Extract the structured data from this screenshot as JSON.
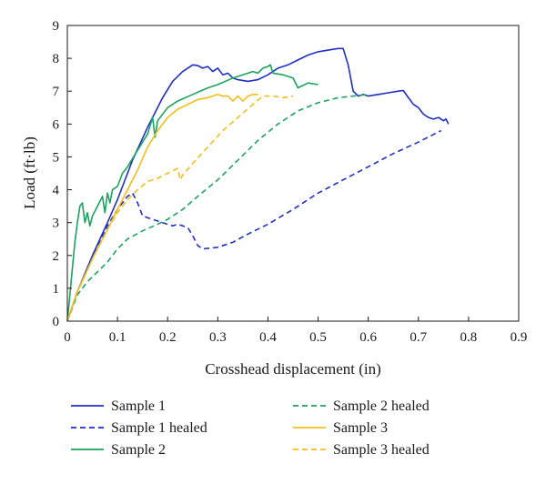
{
  "chart_data": {
    "type": "line",
    "title": "",
    "xlabel": "Crosshead displacement (in)",
    "ylabel": "Load (ft·lb)",
    "xlim": [
      0,
      0.9
    ],
    "ylim": [
      0,
      9
    ],
    "xticks": [
      0,
      0.1,
      0.2,
      0.3,
      0.4,
      0.5,
      0.6,
      0.7,
      0.8,
      0.9
    ],
    "yticks": [
      0,
      1,
      2,
      3,
      4,
      5,
      6,
      7,
      8,
      9
    ],
    "xtick_labels": [
      "0",
      "0.1",
      "0.2",
      "0.3",
      "0.4",
      "0.5",
      "0.6",
      "0.7",
      "0.8",
      "0.9"
    ],
    "ytick_labels": [
      "0",
      "1",
      "2",
      "3",
      "4",
      "5",
      "6",
      "7",
      "8",
      "9"
    ],
    "grid": false,
    "legend_position": "bottom, two columns",
    "series": [
      {
        "name": "Sample 1",
        "color": "#1f2fc4",
        "dash": "solid",
        "x": [
          0,
          0.02,
          0.05,
          0.08,
          0.1,
          0.13,
          0.16,
          0.19,
          0.21,
          0.23,
          0.25,
          0.26,
          0.27,
          0.28,
          0.29,
          0.3,
          0.31,
          0.32,
          0.33,
          0.34,
          0.36,
          0.38,
          0.4,
          0.42,
          0.44,
          0.46,
          0.48,
          0.5,
          0.52,
          0.54,
          0.55,
          0.56,
          0.57,
          0.58,
          0.59,
          0.6,
          0.62,
          0.64,
          0.66,
          0.67,
          0.68,
          0.69,
          0.7,
          0.71,
          0.72,
          0.73,
          0.74,
          0.75,
          0.755,
          0.76
        ],
        "y": [
          0,
          0.9,
          2.0,
          3.0,
          3.7,
          4.9,
          5.9,
          6.8,
          7.3,
          7.6,
          7.8,
          7.78,
          7.7,
          7.75,
          7.6,
          7.7,
          7.5,
          7.55,
          7.4,
          7.35,
          7.3,
          7.35,
          7.5,
          7.7,
          7.8,
          7.95,
          8.1,
          8.2,
          8.25,
          8.3,
          8.3,
          7.8,
          7.0,
          6.85,
          6.9,
          6.85,
          6.9,
          6.95,
          7.0,
          7.02,
          6.8,
          6.6,
          6.5,
          6.3,
          6.2,
          6.15,
          6.2,
          6.1,
          6.15,
          6.0
        ]
      },
      {
        "name": "Sample 1 healed",
        "color": "#1f2fc4",
        "dash": "dashed",
        "x": [
          0,
          0.02,
          0.05,
          0.08,
          0.1,
          0.12,
          0.13,
          0.14,
          0.15,
          0.17,
          0.19,
          0.21,
          0.22,
          0.23,
          0.24,
          0.25,
          0.26,
          0.27,
          0.3,
          0.33,
          0.36,
          0.4,
          0.45,
          0.5,
          0.55,
          0.6,
          0.65,
          0.7,
          0.745
        ],
        "y": [
          0,
          0.9,
          1.9,
          2.9,
          3.4,
          3.8,
          3.9,
          3.6,
          3.2,
          3.1,
          3.0,
          2.9,
          2.95,
          2.9,
          2.85,
          2.6,
          2.3,
          2.2,
          2.25,
          2.4,
          2.65,
          2.95,
          3.4,
          3.9,
          4.3,
          4.7,
          5.1,
          5.45,
          5.8
        ]
      },
      {
        "name": "Sample 2",
        "color": "#1aa35e",
        "dash": "solid",
        "x": [
          0,
          0.005,
          0.01,
          0.015,
          0.02,
          0.025,
          0.03,
          0.035,
          0.04,
          0.045,
          0.05,
          0.06,
          0.07,
          0.075,
          0.08,
          0.085,
          0.09,
          0.1,
          0.11,
          0.12,
          0.14,
          0.16,
          0.17,
          0.175,
          0.18,
          0.2,
          0.22,
          0.25,
          0.28,
          0.3,
          0.33,
          0.35,
          0.37,
          0.38,
          0.39,
          0.4,
          0.405,
          0.41,
          0.43,
          0.45,
          0.46,
          0.48,
          0.5
        ],
        "y": [
          0,
          0.8,
          1.6,
          2.4,
          3.0,
          3.5,
          3.6,
          3.0,
          3.3,
          2.9,
          3.2,
          3.5,
          3.8,
          3.3,
          3.9,
          3.6,
          4.0,
          4.1,
          4.5,
          4.7,
          5.2,
          5.7,
          6.2,
          5.6,
          6.1,
          6.5,
          6.7,
          6.9,
          7.1,
          7.2,
          7.4,
          7.5,
          7.6,
          7.55,
          7.7,
          7.75,
          7.8,
          7.55,
          7.5,
          7.4,
          7.1,
          7.25,
          7.2
        ]
      },
      {
        "name": "Sample 2 healed",
        "color": "#1aa35e",
        "dash": "dashed",
        "x": [
          0,
          0.02,
          0.04,
          0.06,
          0.08,
          0.1,
          0.12,
          0.15,
          0.18,
          0.2,
          0.23,
          0.26,
          0.3,
          0.34,
          0.38,
          0.42,
          0.46,
          0.5,
          0.54,
          0.57,
          0.6
        ],
        "y": [
          0,
          0.8,
          1.2,
          1.5,
          1.8,
          2.2,
          2.5,
          2.75,
          2.95,
          3.1,
          3.4,
          3.8,
          4.3,
          4.9,
          5.5,
          6.0,
          6.4,
          6.65,
          6.8,
          6.85,
          6.9
        ]
      },
      {
        "name": "Sample 3",
        "color": "#f2be1a",
        "dash": "solid",
        "x": [
          0,
          0.02,
          0.05,
          0.08,
          0.1,
          0.12,
          0.14,
          0.16,
          0.18,
          0.2,
          0.22,
          0.24,
          0.26,
          0.28,
          0.3,
          0.31,
          0.32,
          0.33,
          0.34,
          0.35,
          0.36,
          0.37,
          0.38
        ],
        "y": [
          0,
          0.9,
          1.9,
          2.8,
          3.4,
          4.0,
          4.6,
          5.3,
          5.8,
          6.2,
          6.45,
          6.6,
          6.75,
          6.8,
          6.9,
          6.85,
          6.85,
          6.7,
          6.85,
          6.7,
          6.85,
          6.9,
          6.9
        ]
      },
      {
        "name": "Sample 3 healed",
        "color": "#f2be1a",
        "dash": "dashed",
        "x": [
          0,
          0.02,
          0.05,
          0.08,
          0.1,
          0.12,
          0.14,
          0.16,
          0.18,
          0.2,
          0.22,
          0.225,
          0.23,
          0.25,
          0.28,
          0.31,
          0.34,
          0.37,
          0.39,
          0.41,
          0.43,
          0.45
        ],
        "y": [
          0,
          0.9,
          1.9,
          2.8,
          3.3,
          3.7,
          4.0,
          4.25,
          4.35,
          4.5,
          4.65,
          4.3,
          4.45,
          4.8,
          5.3,
          5.8,
          6.2,
          6.6,
          6.85,
          6.85,
          6.8,
          6.85
        ]
      }
    ]
  }
}
